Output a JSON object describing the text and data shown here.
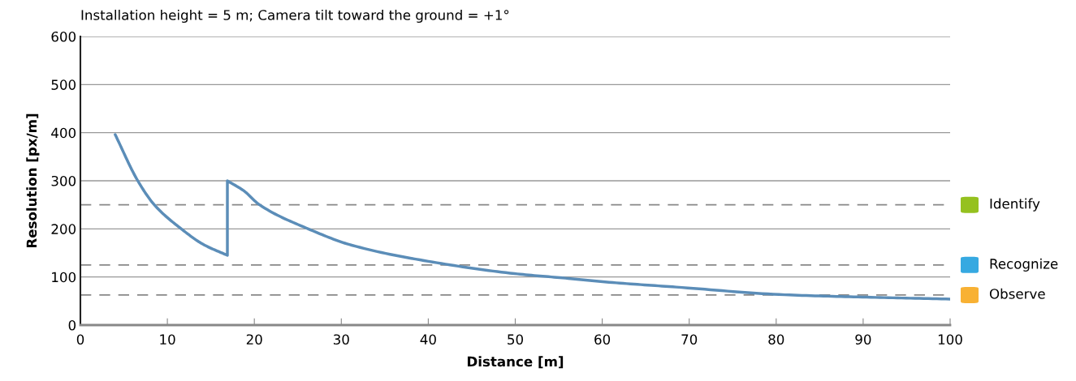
{
  "chart_data": {
    "type": "line",
    "title": "Installation height = 5 m; Camera tilt toward the ground = +1°",
    "xlabel": "Distance [m]",
    "ylabel": "Resolution [px/m]",
    "series": [
      {
        "color": "#5b8db8",
        "x": [
          4,
          6.6,
          8.5,
          11.6,
          14.1,
          16.9,
          16.9,
          18.8,
          20.6,
          26.2,
          31.2,
          40.5,
          49.9,
          56.1,
          60.8,
          68.5,
          81,
          90.4,
          100
        ],
        "values": [
          396,
          300,
          250,
          200,
          168,
          145,
          300,
          279,
          250,
          200,
          166,
          131,
          107,
          97,
          89,
          79,
          63,
          58,
          54
        ]
      }
    ],
    "xlim": [
      0,
      100
    ],
    "xticks": [
      0,
      10,
      20,
      30,
      40,
      50,
      60,
      70,
      80,
      90,
      100
    ],
    "ylim": [
      0,
      600
    ],
    "yticks": [
      0,
      100,
      200,
      300,
      400,
      500,
      600
    ],
    "grid": "y",
    "marker": "none",
    "line_style": "solid",
    "ref_lines": [
      {
        "axis": "y",
        "value": 250,
        "label": "Identify",
        "line_style": "dashed"
      },
      {
        "axis": "y",
        "value": 125,
        "label": "Recognize",
        "line_style": "dashed"
      },
      {
        "axis": "y",
        "value": 62.5,
        "label": "Observe",
        "line_style": "dashed"
      }
    ]
  }
}
